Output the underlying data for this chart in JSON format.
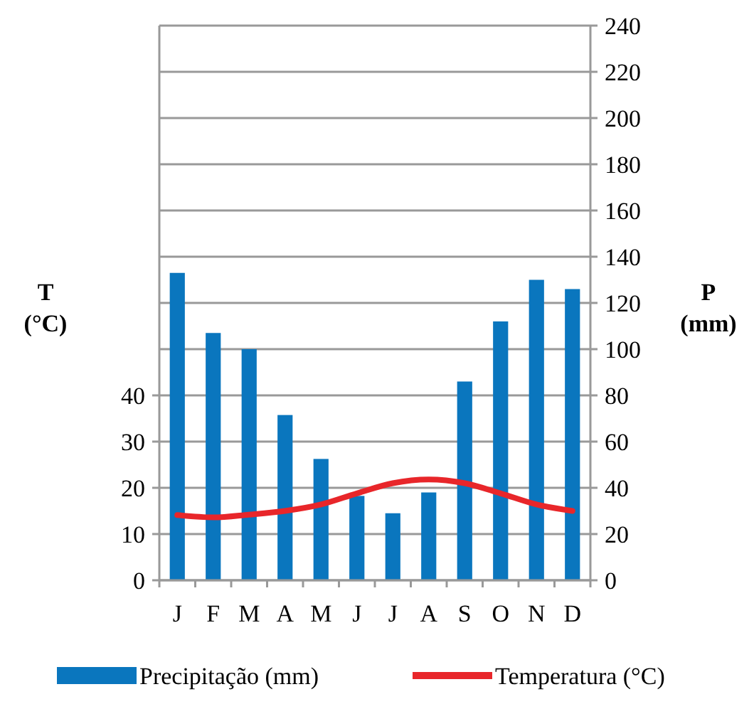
{
  "chart_data": {
    "type": "bar",
    "categories": [
      "J",
      "F",
      "M",
      "A",
      "M",
      "J",
      "J",
      "A",
      "S",
      "O",
      "N",
      "D"
    ],
    "series": [
      {
        "name": "Precipitação (mm)",
        "axis": "y2",
        "color": "#0a76be",
        "values": [
          133,
          107,
          100,
          71.5,
          52.5,
          36.5,
          29,
          38,
          86,
          112,
          130,
          126
        ]
      },
      {
        "name": "Temperatura (°C)",
        "type": "line",
        "axis": "y",
        "color": "#e8262a",
        "values": [
          14.1,
          13.6,
          14.2,
          15,
          16.4,
          18.8,
          21,
          21.8,
          21,
          18.8,
          16.4,
          15
        ]
      }
    ],
    "ylabel": "T (°C)",
    "y2label": "P (mm)",
    "ylim": [
      0,
      120
    ],
    "yticks": [
      0,
      10,
      20,
      30,
      40
    ],
    "y2lim": [
      0,
      240
    ],
    "y2ticks": [
      0,
      20,
      40,
      60,
      80,
      100,
      120,
      140,
      160,
      180,
      200,
      220,
      240
    ],
    "grid": "y2",
    "legend": "bottom",
    "marker": "none",
    "line_style": "solid"
  }
}
